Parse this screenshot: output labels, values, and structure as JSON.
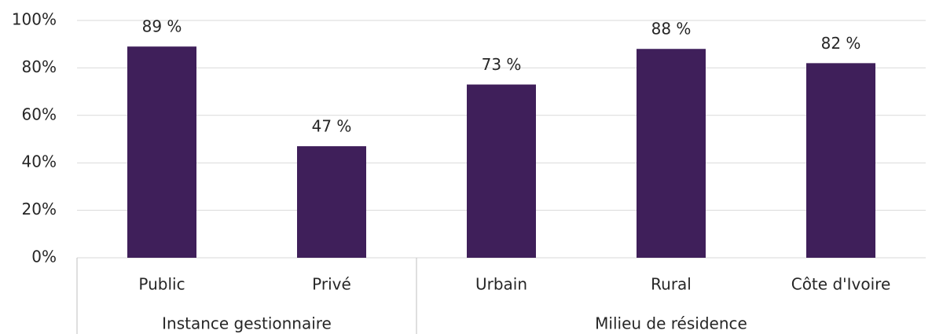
{
  "chart_data": {
    "type": "bar",
    "categories": [
      "Public",
      "Privé",
      "Urbain",
      "Rural",
      "Côte d'Ivoire"
    ],
    "values": [
      89,
      47,
      73,
      88,
      82
    ],
    "value_labels": [
      "89 %",
      "47 %",
      "73 %",
      "88 %",
      "82 %"
    ],
    "groups": [
      {
        "name": "Instance gestionnaire",
        "span": 2
      },
      {
        "name": "Milieu de résidence",
        "span": 3
      }
    ],
    "color": "#3f1f5a",
    "ylim": [
      0,
      100
    ],
    "yticks": [
      {
        "value": 0,
        "label": "0%"
      },
      {
        "value": 20,
        "label": "20%"
      },
      {
        "value": 40,
        "label": "40%"
      },
      {
        "value": 60,
        "label": "60%"
      },
      {
        "value": 80,
        "label": "80%"
      },
      {
        "value": 100,
        "label": "100%"
      }
    ],
    "grid": true
  }
}
